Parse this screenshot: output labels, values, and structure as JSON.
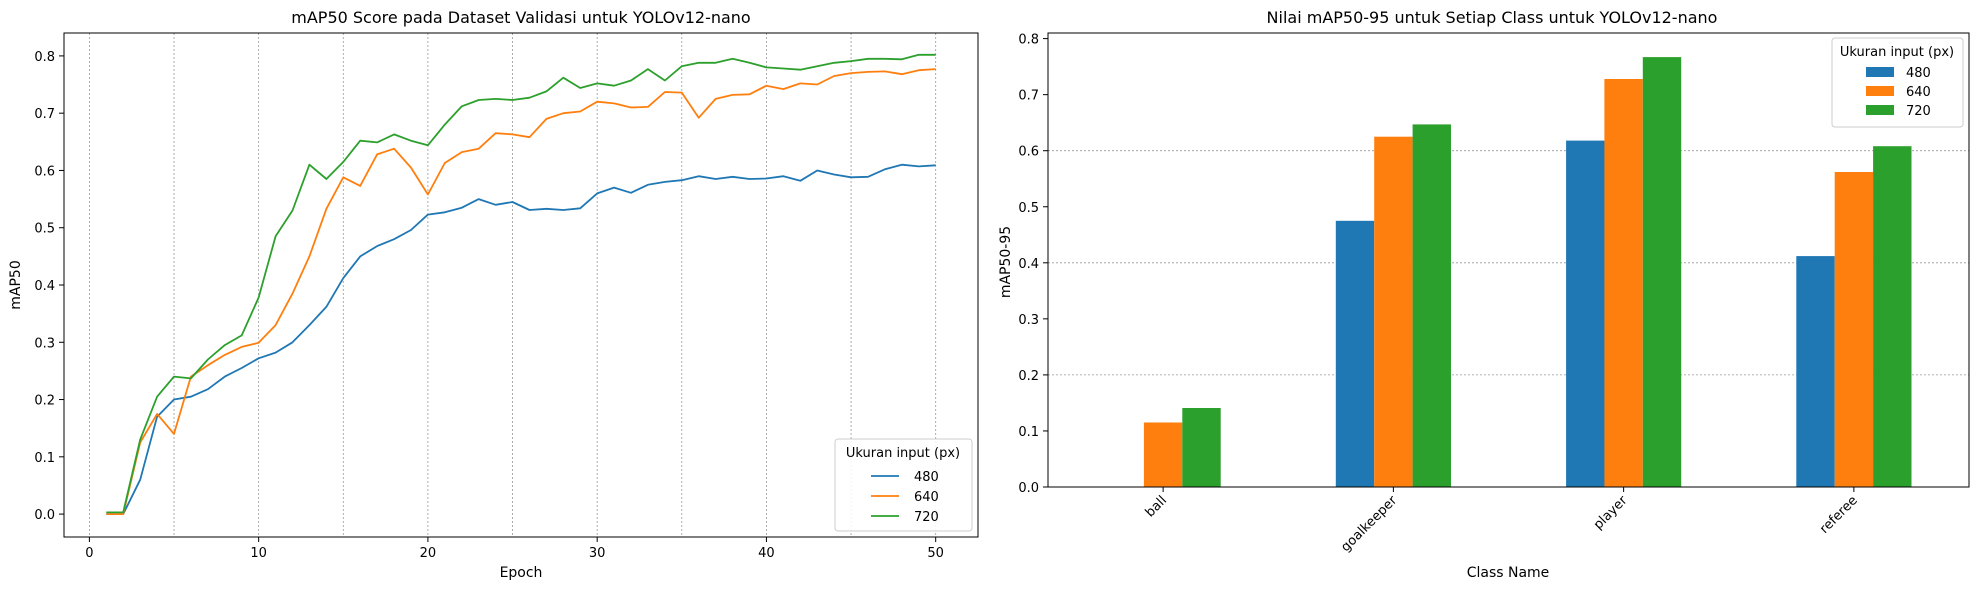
{
  "chart_data": [
    {
      "type": "line",
      "title": "mAP50 Score pada Dataset Validasi untuk YOLOv12-nano",
      "xlabel": "Epoch",
      "ylabel": "mAP50",
      "xlim": [
        -1.5,
        52.5
      ],
      "ylim": [
        -0.04,
        0.84
      ],
      "xticks": [
        0,
        10,
        20,
        30,
        40,
        50
      ],
      "yticks": [
        0.0,
        0.1,
        0.2,
        0.3,
        0.4,
        0.5,
        0.6,
        0.7,
        0.8
      ],
      "grid": "vertical dashed every 5 epochs",
      "legend": {
        "title": "Ukuran input (px)",
        "position": "lower right"
      },
      "x": [
        1,
        2,
        3,
        4,
        5,
        6,
        7,
        8,
        9,
        10,
        11,
        12,
        13,
        14,
        15,
        16,
        17,
        18,
        19,
        20,
        21,
        22,
        23,
        24,
        25,
        26,
        27,
        28,
        29,
        30,
        31,
        32,
        33,
        34,
        35,
        36,
        37,
        38,
        39,
        40,
        41,
        42,
        43,
        44,
        45,
        46,
        47,
        48,
        49,
        50
      ],
      "series": [
        {
          "name": "480",
          "color": "#1f77b4",
          "values": [
            0.0,
            0.0,
            0.06,
            0.17,
            0.2,
            0.205,
            0.218,
            0.24,
            0.255,
            0.272,
            0.282,
            0.3,
            0.33,
            0.362,
            0.412,
            0.45,
            0.468,
            0.48,
            0.496,
            0.523,
            0.527,
            0.535,
            0.55,
            0.54,
            0.545,
            0.531,
            0.533,
            0.531,
            0.534,
            0.56,
            0.57,
            0.561,
            0.575,
            0.58,
            0.583,
            0.59,
            0.585,
            0.589,
            0.585,
            0.586,
            0.59,
            0.582,
            0.6,
            0.593,
            0.588,
            0.589,
            0.602,
            0.61,
            0.607,
            0.609
          ]
        },
        {
          "name": "640",
          "color": "#ff7f0e",
          "values": [
            0.0,
            0.0,
            0.125,
            0.175,
            0.14,
            0.24,
            0.26,
            0.278,
            0.292,
            0.299,
            0.33,
            0.385,
            0.45,
            0.533,
            0.588,
            0.573,
            0.628,
            0.638,
            0.605,
            0.558,
            0.613,
            0.632,
            0.638,
            0.665,
            0.663,
            0.658,
            0.69,
            0.7,
            0.703,
            0.72,
            0.717,
            0.71,
            0.711,
            0.737,
            0.736,
            0.692,
            0.725,
            0.732,
            0.733,
            0.748,
            0.742,
            0.752,
            0.75,
            0.765,
            0.77,
            0.772,
            0.773,
            0.768,
            0.775,
            0.777
          ]
        },
        {
          "name": "720",
          "color": "#2ca02c",
          "values": [
            0.003,
            0.003,
            0.13,
            0.205,
            0.24,
            0.237,
            0.27,
            0.295,
            0.312,
            0.378,
            0.485,
            0.53,
            0.61,
            0.585,
            0.615,
            0.652,
            0.649,
            0.663,
            0.652,
            0.644,
            0.68,
            0.712,
            0.723,
            0.725,
            0.723,
            0.727,
            0.738,
            0.762,
            0.744,
            0.752,
            0.748,
            0.757,
            0.777,
            0.757,
            0.782,
            0.788,
            0.788,
            0.795,
            0.788,
            0.78,
            0.778,
            0.776,
            0.782,
            0.788,
            0.791,
            0.795,
            0.795,
            0.794,
            0.802,
            0.802
          ]
        }
      ]
    },
    {
      "type": "bar",
      "title": "Nilai mAP50-95 untuk Setiap Class untuk YOLOv12-nano",
      "xlabel": "Class Name",
      "ylabel": "mAP50-95",
      "categories": [
        "ball",
        "goalkeeper",
        "player",
        "referee"
      ],
      "ylim": [
        0,
        0.81
      ],
      "yticks": [
        0.0,
        0.1,
        0.2,
        0.3,
        0.4,
        0.5,
        0.6,
        0.7,
        0.8
      ],
      "grid": "horizontal dashed at 0.2, 0.4, 0.6",
      "legend": {
        "title": "Ukuran input (px)",
        "position": "upper right"
      },
      "series": [
        {
          "name": "480",
          "color": "#1f77b4",
          "values": [
            0.0,
            0.475,
            0.618,
            0.412
          ]
        },
        {
          "name": "640",
          "color": "#ff7f0e",
          "values": [
            0.115,
            0.625,
            0.728,
            0.562
          ]
        },
        {
          "name": "720",
          "color": "#2ca02c",
          "values": [
            0.141,
            0.647,
            0.767,
            0.608
          ]
        }
      ]
    }
  ]
}
